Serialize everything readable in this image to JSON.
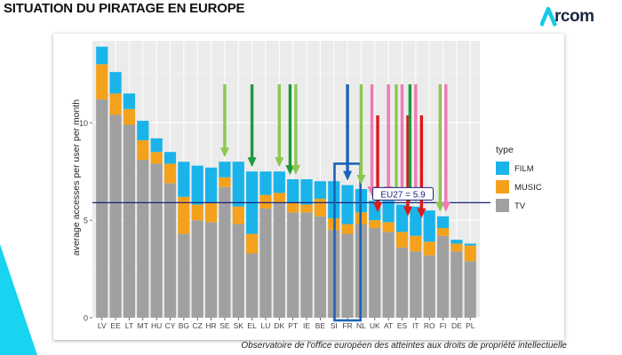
{
  "page": {
    "title": "SITUATION DU PIRATAGE EN EUROPE",
    "logo_text": "rcom",
    "logo_mark": "A",
    "caption": "Observatoire de l'office européen des atteintes aux droits de propriété intellectuelle"
  },
  "colors": {
    "film": "#1ab4ea",
    "music": "#f4a21c",
    "tv": "#a0a0a0",
    "eu_line": "#1a237e",
    "arrow_light_green": "#8cc850",
    "arrow_dark_green": "#1f9a3c",
    "arrow_blue": "#1b63b8",
    "arrow_pink": "#f07ab4",
    "arrow_red": "#e01818",
    "highlight_box": "#1b63b8",
    "accent_teal": "#18d4f0"
  },
  "chart_data": {
    "type": "bar",
    "stacked": true,
    "ylabel": "average accesses per user per month",
    "ylim": [
      0,
      14.2
    ],
    "yticks": [
      0,
      5,
      10
    ],
    "grid": true,
    "legend": {
      "title": "type",
      "position": "right",
      "entries": [
        "FILM",
        "MUSIC",
        "TV"
      ]
    },
    "categories": [
      "LV",
      "EE",
      "LT",
      "MT",
      "HU",
      "CY",
      "BG",
      "CZ",
      "HR",
      "SE",
      "SK",
      "EL",
      "LU",
      "DK",
      "PT",
      "IE",
      "BE",
      "SI",
      "FR",
      "NL",
      "UK",
      "AT",
      "ES",
      "IT",
      "RO",
      "FI",
      "DE",
      "PL"
    ],
    "series": [
      {
        "name": "TV",
        "values": [
          11.2,
          10.4,
          9.9,
          8.1,
          7.9,
          6.9,
          4.3,
          5.0,
          4.9,
          6.7,
          4.8,
          3.3,
          5.6,
          5.9,
          5.4,
          5.4,
          5.2,
          4.5,
          4.3,
          4.8,
          4.6,
          4.4,
          3.6,
          3.4,
          3.2,
          4.2,
          3.4,
          2.9
        ]
      },
      {
        "name": "MUSIC",
        "values": [
          1.8,
          1.1,
          0.8,
          1.0,
          0.6,
          1.0,
          1.9,
          0.8,
          1.0,
          0.5,
          0.9,
          1.0,
          0.7,
          0.5,
          0.5,
          0.4,
          0.9,
          0.6,
          0.5,
          0.6,
          0.4,
          0.5,
          0.8,
          0.8,
          0.7,
          0.4,
          0.4,
          0.8
        ]
      },
      {
        "name": "FILM",
        "values": [
          0.9,
          1.1,
          0.8,
          1.0,
          0.7,
          0.6,
          1.8,
          2.0,
          1.8,
          0.8,
          2.3,
          3.2,
          1.2,
          1.1,
          1.2,
          1.3,
          0.9,
          1.9,
          2.0,
          1.2,
          1.0,
          1.1,
          1.4,
          1.5,
          1.6,
          0.6,
          0.2,
          0.1
        ]
      }
    ],
    "reference_line": {
      "label": "EU27 = 5.9",
      "value": 5.9
    },
    "highlight": "FR",
    "arrows": [
      {
        "at": "SE",
        "color": "light_green"
      },
      {
        "at": "EL",
        "color": "dark_green"
      },
      {
        "at": "DK",
        "color": "light_green"
      },
      {
        "at": "PT",
        "color": "dark_green"
      },
      {
        "at": "PT",
        "color": "light_green"
      },
      {
        "at": "FR",
        "color": "blue"
      },
      {
        "at": "NL",
        "color": "light_green"
      },
      {
        "at": "UK",
        "color": "pink"
      },
      {
        "at": "UK",
        "color": "red"
      },
      {
        "at": "AT",
        "color": "pink"
      },
      {
        "at": "ES",
        "color": "light_green"
      },
      {
        "at": "ES",
        "color": "pink"
      },
      {
        "at": "ES",
        "color": "red"
      },
      {
        "at": "IT",
        "color": "dark_green"
      },
      {
        "at": "IT",
        "color": "pink"
      },
      {
        "at": "IT",
        "color": "red"
      },
      {
        "at": "FI",
        "color": "light_green"
      },
      {
        "at": "FI",
        "color": "pink"
      }
    ]
  }
}
